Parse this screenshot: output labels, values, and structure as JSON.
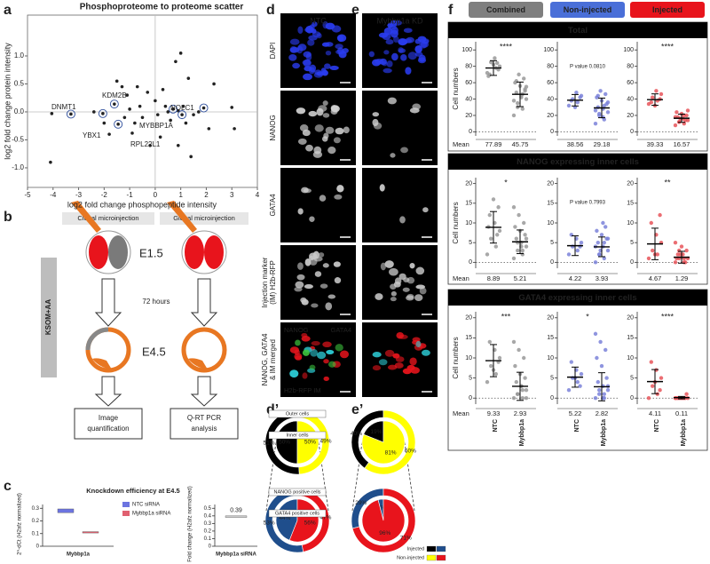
{
  "panel_labels": {
    "a": "a",
    "b": "b",
    "c": "c",
    "d": "d",
    "e": "e",
    "f": "f",
    "d2": "d’",
    "e2": "e’"
  },
  "schematic": {
    "clonal": "Clonal microinjection",
    "global": "Global microinjection",
    "stage1": "E1.5",
    "duration": "72 hours",
    "stage2": "E4.5",
    "medium": "KSOM+AA",
    "left_box": [
      "Image",
      "quantification"
    ],
    "right_box": [
      "Q-RT PCR",
      "analysis"
    ]
  },
  "microscopy": {
    "columns": [
      "NTC",
      "Mybbp1a KD"
    ],
    "rows": [
      [
        "DAPI"
      ],
      [
        "NANOG"
      ],
      [
        "GATA4"
      ],
      [
        "Injection marker",
        "(IM) H2b-RFP"
      ],
      [
        "NANOG, GATA4",
        "& IM merged"
      ]
    ],
    "overlay": [
      {
        "text": "NANOG",
        "color": "#2fd6e0"
      },
      {
        "text": "GATA4",
        "color": "#3ec83e"
      },
      {
        "text": "H2b-RFP IM",
        "color": "#e8141c"
      }
    ]
  },
  "pie_legend": [
    {
      "label": "Injected",
      "colors": [
        "#000000",
        "#1f4e8c"
      ]
    },
    {
      "label": "Non-injected",
      "colors": [
        "#ffff00",
        "#e8141c"
      ]
    }
  ],
  "panel_f": {
    "headers": [
      {
        "text": "Combined",
        "color": "#7f7f7f"
      },
      {
        "text": "Non-injected",
        "color": "#4a6fd8"
      },
      {
        "text": "Injected",
        "color": "#e8141c"
      }
    ],
    "sections": [
      "Total",
      "NANOG expressing inner cells",
      "GATA4 expressing inner cells"
    ],
    "y_label": "Cell numbers",
    "mean_label": "Mean"
  },
  "chart_data": [
    {
      "type": "scatter",
      "title": "Phosphoproteome to proteome scatter",
      "x_label": "log2 fold change phosphopeptide intensity",
      "y_label": "log2 fold change protein intensity",
      "xlim": [
        -5,
        4
      ],
      "ylim": [
        -1.35,
        1.73
      ],
      "xticks": [
        -5,
        -4,
        -3,
        -2,
        -1,
        0,
        1,
        2,
        3,
        4
      ],
      "yticks": [
        {
          "value": -1,
          "label": "-1.0"
        },
        {
          "value": -0.5,
          "label": "-0.5"
        },
        {
          "value": 0,
          "label": "0.0"
        },
        {
          "value": 0.5,
          "label": "0.5"
        },
        {
          "value": 1,
          "label": "1.0"
        }
      ],
      "zero_lines": true,
      "color": "#222222",
      "x": [
        -4.1,
        -4.05,
        -2.4,
        -1.5,
        -1.3,
        -1.1,
        -1.0,
        -0.9,
        -0.8,
        -0.6,
        -0.5,
        -0.3,
        -0.2,
        0.0,
        0.1,
        0.2,
        0.3,
        0.4,
        0.5,
        0.6,
        0.8,
        0.9,
        1.1,
        1.2,
        1.3,
        1.5,
        1.7,
        2.1,
        2.3,
        3.0,
        3.1,
        -2.0,
        -1.8,
        -1.2,
        0.9,
        1.4,
        -0.7,
        1.0
      ],
      "y": [
        -0.9,
        -0.03,
        0.0,
        0.55,
        0.45,
        0.3,
        0.05,
        -0.38,
        -0.2,
        0.1,
        -0.1,
        0.35,
        -0.6,
        0.2,
        -0.05,
        -0.45,
        0.4,
        0.1,
        0.0,
        -0.15,
        0.9,
        0.02,
        0.1,
        -0.2,
        0.6,
        -0.05,
        0.0,
        -0.3,
        0.5,
        0.08,
        -0.3,
        -0.2,
        -0.4,
        -0.1,
        -0.6,
        -0.8,
        0.45,
        1.05
      ],
      "highlighted": {
        "color": "#2b4c9b",
        "x": [
          -3.3,
          -2.05,
          -1.6,
          -1.45,
          0.7,
          1.05,
          1.9
        ],
        "y": [
          -0.04,
          -0.03,
          0.14,
          -0.22,
          0.05,
          -0.05,
          0.07
        ]
      },
      "annotations": [
        {
          "text": "DNMT1",
          "color": "#1f3a7a"
        },
        {
          "text": "KDM2B",
          "color": "#1f3a7a"
        },
        {
          "text": "NOLC1",
          "color": "#1aa58f"
        },
        {
          "text": "YBX1",
          "color": "#2a6bd1"
        },
        {
          "text": "MYBBP1A",
          "color": "#e0218a"
        },
        {
          "text": "RPL22L1",
          "color": "#b01c2e"
        }
      ]
    },
    {
      "type": "errorbox",
      "title": "Knockdown efficiency at E4.5",
      "y_label": "2^-dCt (H2afz normalized)",
      "categories": [
        "Mybbp1a"
      ],
      "ylim": [
        0,
        0.33
      ],
      "yticks": [
        0,
        0.1,
        0.2,
        0.3
      ],
      "series": [
        {
          "name": "NTC siRNA",
          "color": "#6c74e0",
          "values": [
            0.28
          ],
          "errors": [
            0.015
          ]
        },
        {
          "name": "Mybbp1a siRNA",
          "color": "#e06070",
          "values": [
            0.11
          ],
          "errors": [
            0.002
          ]
        }
      ]
    },
    {
      "type": "errorbox",
      "y_label": "Fold change (H2afz normalized)",
      "categories": [
        "Mybbp1a siRNA"
      ],
      "ylim": [
        0,
        0.55
      ],
      "yticks": [
        0,
        0.1,
        0.2,
        0.3,
        0.4,
        0.5
      ],
      "series": [
        {
          "color": "#cccccc",
          "values": [
            0.39
          ],
          "errors": [
            0.01
          ],
          "value_labels": [
            "0.39"
          ]
        }
      ]
    },
    {
      "type": "donut",
      "colors": [
        "#000000",
        "#ffff00"
      ],
      "series": [
        {
          "name": "Outer cells",
          "values": [
            51,
            49
          ],
          "value_labels": [
            "51%",
            "49%"
          ]
        },
        {
          "name": "Inner cells",
          "values": [
            50,
            50
          ],
          "value_labels": [
            "50%",
            "50%"
          ]
        }
      ]
    },
    {
      "type": "donut",
      "colors": [
        "#000000",
        "#ffff00"
      ],
      "series": [
        {
          "values": [
            40,
            60
          ],
          "value_labels": [
            "40%",
            "60%"
          ]
        },
        {
          "values": [
            19,
            81
          ],
          "value_labels": [
            "19%",
            "81%"
          ]
        }
      ]
    },
    {
      "type": "donut",
      "colors": [
        "#1f4e8c",
        "#e8141c"
      ],
      "series": [
        {
          "name": "NANOG positive cells",
          "values": [
            53,
            47
          ],
          "value_labels": [
            "53%",
            "47%"
          ]
        },
        {
          "name": "GATA4 positive cells",
          "values": [
            44,
            56
          ],
          "value_labels": [
            "44%",
            "56%"
          ]
        }
      ]
    },
    {
      "type": "donut",
      "colors": [
        "#1f4e8c",
        "#e8141c"
      ],
      "series": [
        {
          "values": [
            29,
            71
          ],
          "value_labels": [
            "29%",
            "71%"
          ]
        },
        {
          "values": [
            4,
            96
          ],
          "value_labels": [
            "4%",
            "96%"
          ]
        }
      ]
    },
    {
      "type": "dot",
      "ylim": [
        -5,
        110
      ],
      "yticks": [
        0,
        20,
        40,
        60,
        80,
        100
      ],
      "annotation": "****",
      "groups": [
        {
          "color": "#999999",
          "mean": 77.89,
          "sd": 9,
          "values": [
            72,
            78,
            85,
            80,
            90,
            70,
            76,
            82,
            68,
            84
          ]
        },
        {
          "color": "#999999",
          "mean": 45.75,
          "sd": 15,
          "values": [
            20,
            28,
            35,
            40,
            44,
            48,
            52,
            56,
            60,
            65,
            70,
            38,
            46,
            30,
            55,
            42,
            62,
            50
          ]
        }
      ]
    },
    {
      "type": "dot",
      "ylim": [
        -5,
        110
      ],
      "yticks": [
        0,
        20,
        40,
        60,
        80,
        100
      ],
      "annotation": "P value 0.0810",
      "groups": [
        {
          "color": "#7b83d9",
          "mean": 38.56,
          "sd": 7,
          "values": [
            32,
            36,
            40,
            44,
            48,
            38,
            42,
            30
          ]
        },
        {
          "color": "#7b83d9",
          "mean": 29.18,
          "sd": 12,
          "values": [
            10,
            15,
            20,
            24,
            28,
            30,
            34,
            38,
            42,
            46,
            50,
            26,
            32,
            22,
            36,
            18,
            44
          ]
        }
      ]
    },
    {
      "type": "dot",
      "ylim": [
        -5,
        110
      ],
      "yticks": [
        0,
        20,
        40,
        60,
        80,
        100
      ],
      "annotation": "****",
      "groups": [
        {
          "color": "#e8555a",
          "mean": 39.33,
          "sd": 7,
          "values": [
            34,
            38,
            42,
            46,
            50,
            36,
            40,
            32
          ]
        },
        {
          "color": "#e8555a",
          "mean": 16.57,
          "sd": 5,
          "values": [
            8,
            10,
            12,
            14,
            16,
            18,
            20,
            22,
            24,
            14,
            16,
            18,
            20,
            12,
            26
          ]
        }
      ]
    },
    {
      "type": "dot",
      "ylim": [
        -1.5,
        21.5
      ],
      "yticks": [
        0,
        5,
        10,
        15,
        20
      ],
      "annotation": "*",
      "groups": [
        {
          "color": "#999999",
          "mean": 8.89,
          "sd": 4,
          "values": [
            2,
            4,
            6,
            8,
            10,
            12,
            14,
            16,
            9,
            7
          ]
        },
        {
          "color": "#999999",
          "mean": 5.21,
          "sd": 3,
          "values": [
            1,
            2,
            3,
            4,
            5,
            6,
            7,
            8,
            9,
            10,
            12,
            14,
            3,
            5,
            6,
            4
          ]
        }
      ]
    },
    {
      "type": "dot",
      "ylim": [
        -1.5,
        21.5
      ],
      "yticks": [
        0,
        5,
        10,
        15,
        20
      ],
      "annotation": "P value 0.7993",
      "groups": [
        {
          "color": "#7b83d9",
          "mean": 4.22,
          "sd": 2.5,
          "values": [
            2,
            3,
            4,
            5,
            6,
            7,
            4
          ]
        },
        {
          "color": "#7b83d9",
          "mean": 3.93,
          "sd": 2.5,
          "values": [
            0,
            1,
            2,
            3,
            4,
            5,
            6,
            7,
            8,
            9,
            3,
            4,
            5,
            2,
            6,
            10
          ]
        }
      ]
    },
    {
      "type": "dot",
      "ylim": [
        -1.5,
        21.5
      ],
      "yticks": [
        0,
        5,
        10,
        15,
        20
      ],
      "annotation": "**",
      "groups": [
        {
          "color": "#e8555a",
          "mean": 4.67,
          "sd": 4,
          "values": [
            1,
            2,
            3,
            5,
            7,
            10,
            12,
            2
          ]
        },
        {
          "color": "#e8555a",
          "mean": 1.29,
          "sd": 1.5,
          "values": [
            0,
            0,
            1,
            1,
            2,
            2,
            3,
            4,
            1,
            0,
            2,
            5,
            1,
            3
          ]
        }
      ]
    },
    {
      "type": "dot",
      "ylim": [
        -1.5,
        21.5
      ],
      "yticks": [
        0,
        5,
        10,
        15,
        20
      ],
      "annotation": "***",
      "categories": [
        "NTC",
        "Mybbp1a"
      ],
      "groups": [
        {
          "color": "#999999",
          "mean": 9.33,
          "sd": 4,
          "values": [
            4,
            6,
            8,
            10,
            12,
            14,
            9,
            7
          ]
        },
        {
          "color": "#999999",
          "mean": 2.93,
          "sd": 3.5,
          "values": [
            0,
            0,
            1,
            2,
            3,
            4,
            5,
            6,
            8,
            10,
            12,
            14,
            2,
            1,
            0,
            3
          ]
        }
      ]
    },
    {
      "type": "dot",
      "ylim": [
        -1.5,
        21.5
      ],
      "yticks": [
        0,
        5,
        10,
        15,
        20
      ],
      "annotation": "*",
      "categories": [
        "NTC",
        "Mybbp1a"
      ],
      "groups": [
        {
          "color": "#7b83d9",
          "mean": 5.22,
          "sd": 2.5,
          "values": [
            2,
            4,
            5,
            6,
            7,
            9,
            3,
            5
          ]
        },
        {
          "color": "#7b83d9",
          "mean": 2.82,
          "sd": 3.5,
          "values": [
            0,
            0,
            1,
            2,
            3,
            4,
            5,
            8,
            10,
            12,
            14,
            16,
            1,
            2,
            3,
            0
          ]
        }
      ]
    },
    {
      "type": "dot",
      "ylim": [
        -1.5,
        21.5
      ],
      "yticks": [
        0,
        5,
        10,
        15,
        20
      ],
      "annotation": "****",
      "categories": [
        "NTC",
        "Mybbp1a"
      ],
      "groups": [
        {
          "color": "#e8555a",
          "mean": 4.11,
          "sd": 3,
          "values": [
            0,
            1,
            3,
            5,
            7,
            9,
            2,
            4
          ]
        },
        {
          "color": "#e8555a",
          "mean": 0.11,
          "sd": 0.3,
          "values": [
            0,
            0,
            0,
            0,
            0,
            0,
            1,
            0,
            0,
            0,
            0,
            0
          ]
        }
      ]
    }
  ]
}
